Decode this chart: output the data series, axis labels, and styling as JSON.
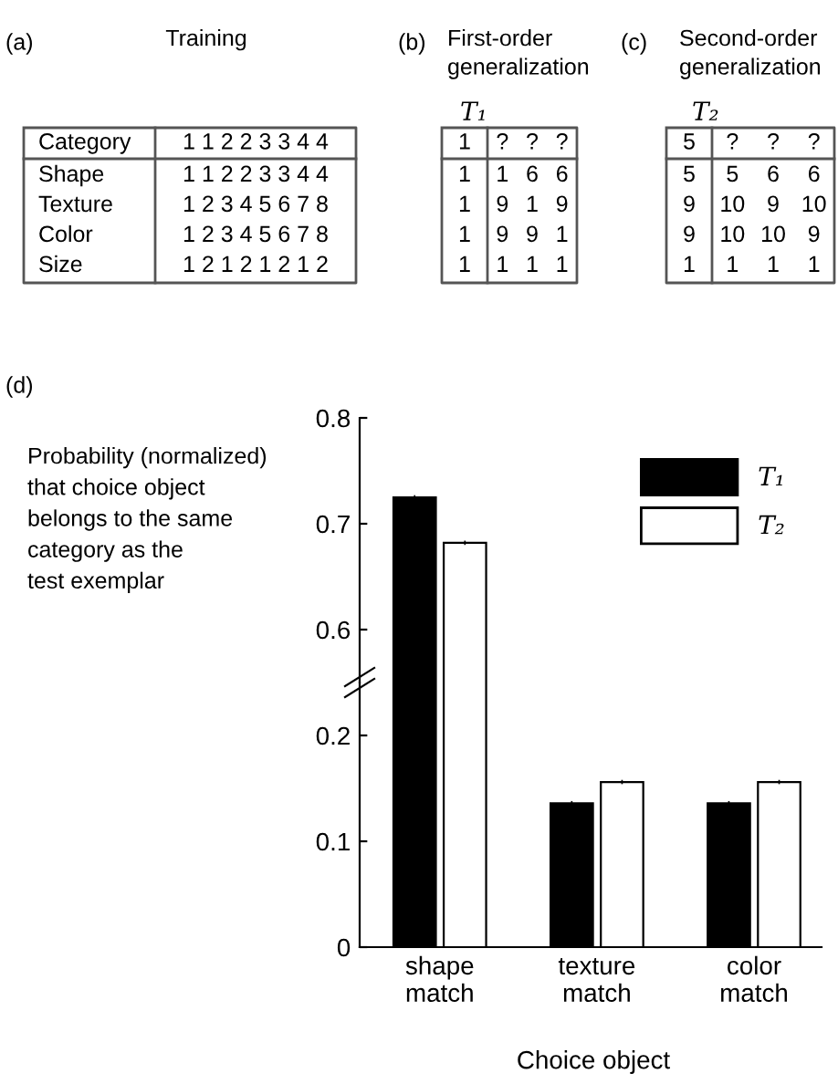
{
  "chart_data": [
    {
      "type": "other",
      "title": "Training",
      "annotations": [
        "(a)"
      ],
      "y_categories": [
        "Category",
        "Shape",
        "Texture",
        "Color",
        "Size"
      ],
      "cell_labels": [
        [
          "1 1 2 2 3 3 4 4"
        ],
        [
          "1 1 2 2 3 3 4 4"
        ],
        [
          "1 2 3 4 5 6 7 8"
        ],
        [
          "1 2 3 4 5 6 7 8"
        ],
        [
          "1 2 1 2 1 2 1 2"
        ]
      ]
    },
    {
      "type": "other",
      "title": "First-order\ngeneralization",
      "subtitle": "T₁",
      "annotations": [
        "(b)"
      ],
      "y_categories": [
        "1",
        "1",
        "1",
        "1",
        "1"
      ],
      "cell_labels": [
        [
          "?",
          "?",
          "?"
        ],
        [
          "1",
          "6",
          "6"
        ],
        [
          "9",
          "1",
          "9"
        ],
        [
          "9",
          "9",
          "1"
        ],
        [
          "1",
          "1",
          "1"
        ]
      ]
    },
    {
      "type": "other",
      "title": "Second-order\ngeneralization",
      "subtitle": "T₂",
      "annotations": [
        "(c)"
      ],
      "y_categories": [
        "5",
        "5",
        "9",
        "9",
        "1"
      ],
      "cell_labels": [
        [
          "?",
          "?",
          "?"
        ],
        [
          "5",
          "6",
          "6"
        ],
        [
          "10",
          "9",
          "10"
        ],
        [
          "10",
          "10",
          "9"
        ],
        [
          "1",
          "1",
          "1"
        ]
      ]
    },
    {
      "type": "bar",
      "annotations": [
        "(d)"
      ],
      "ylabel": "Probability (normalized)\nthat choice object\nbelongs to the same\ncategory as the\ntest exemplar",
      "categories": [
        null,
        null,
        null
      ],
      "series": [
        {
          "name": "T₁",
          "color": "#000000",
          "values": [
            0.725,
            null,
            null
          ],
          "errors": [
            0.002,
            null,
            null
          ]
        },
        {
          "name": "T₂",
          "color": "#ffffff",
          "values": [
            0.682,
            null,
            null
          ],
          "errors": [
            0.002,
            null,
            null
          ]
        }
      ],
      "ylim": [
        0.55,
        0.8
      ],
      "yticks": [
        0.6,
        0.7,
        0.8
      ],
      "tick_labels": "y",
      "legend": "top right",
      "grid": false
    },
    {
      "type": "bar",
      "xlabel": "Choice object",
      "categories": [
        "shape\nmatch",
        "texture\nmatch",
        "color\nmatch"
      ],
      "series": [
        {
          "color": "#000000",
          "values": [
            null,
            0.136,
            0.136
          ],
          "errors": [
            null,
            0.002,
            0.002
          ]
        },
        {
          "color": "#ffffff",
          "values": [
            null,
            0.156,
            0.156
          ],
          "errors": [
            null,
            0.002,
            0.002
          ]
        }
      ],
      "ylim": [
        0,
        0.25
      ],
      "yticks": [
        0,
        0.1,
        0.2
      ],
      "grid": false
    }
  ]
}
